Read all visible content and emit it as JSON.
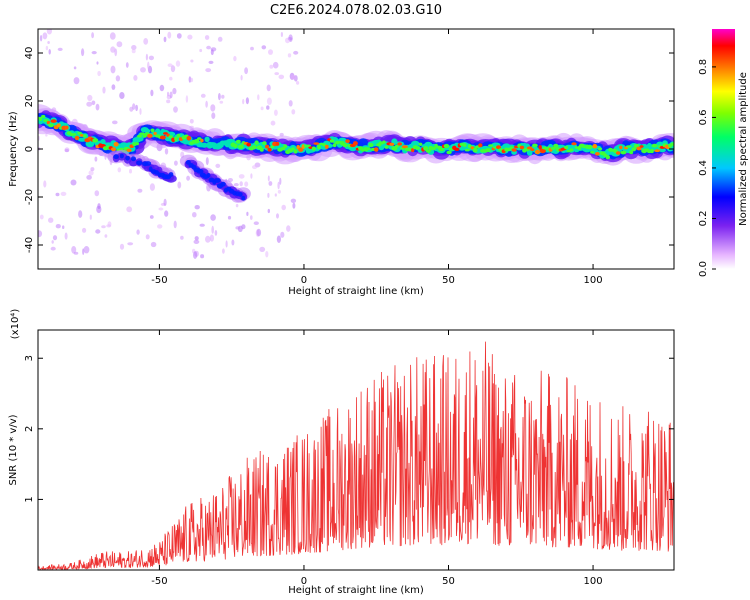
{
  "title": "C2E6.2024.078.02.03.G10",
  "chart_data": [
    {
      "type": "heatmap",
      "xlabel": "Height of straight line (km)",
      "ylabel": "Frequency (Hz)",
      "xlim": [
        -92,
        128
      ],
      "ylim": [
        -50,
        50
      ],
      "xticks": [
        -50,
        0,
        50,
        100
      ],
      "yticks": [
        -40,
        -20,
        0,
        20,
        40
      ],
      "colorbar": {
        "label": "Normalized spectral amplitude",
        "range": [
          0,
          0.95
        ],
        "ticks": [
          0.0,
          0.2,
          0.4,
          0.6,
          0.8
        ],
        "colormap": "rainbow-magenta"
      },
      "main_trace": [
        [
          -90,
          12,
          0.8
        ],
        [
          -85,
          10,
          0.75
        ],
        [
          -80,
          7,
          0.7
        ],
        [
          -75,
          4,
          0.55
        ],
        [
          -70,
          2,
          0.5
        ],
        [
          -65,
          1,
          0.45
        ],
        [
          -60,
          0,
          0.45
        ],
        [
          -55,
          7,
          0.5
        ],
        [
          -50,
          6,
          0.55
        ],
        [
          -45,
          5,
          0.5
        ],
        [
          -40,
          4,
          0.45
        ],
        [
          -35,
          3,
          0.45
        ],
        [
          -30,
          2,
          0.4
        ],
        [
          -25,
          2,
          0.45
        ],
        [
          -20,
          2,
          0.5
        ],
        [
          -15,
          1,
          0.5
        ],
        [
          -10,
          1,
          0.55
        ],
        [
          -5,
          0,
          0.6
        ],
        [
          0,
          0,
          0.6
        ],
        [
          5,
          1,
          0.55
        ],
        [
          10,
          3,
          0.5
        ],
        [
          15,
          2,
          0.55
        ],
        [
          20,
          1,
          0.6
        ],
        [
          25,
          1,
          0.65
        ],
        [
          30,
          2,
          0.6
        ],
        [
          35,
          1,
          0.55
        ],
        [
          40,
          1,
          0.6
        ],
        [
          45,
          0,
          0.6
        ],
        [
          50,
          0,
          0.55
        ],
        [
          55,
          1,
          0.6
        ],
        [
          60,
          0,
          0.6
        ],
        [
          65,
          1,
          0.55
        ],
        [
          70,
          0,
          0.6
        ],
        [
          75,
          0,
          0.6
        ],
        [
          80,
          0,
          0.65
        ],
        [
          85,
          1,
          0.65
        ],
        [
          90,
          0,
          0.7
        ],
        [
          95,
          1,
          0.7
        ],
        [
          100,
          0,
          0.65
        ],
        [
          105,
          -2,
          0.6
        ],
        [
          110,
          0,
          0.7
        ],
        [
          115,
          0,
          0.75
        ],
        [
          120,
          0,
          0.65
        ],
        [
          125,
          1,
          0.6
        ]
      ],
      "branch_traces": [
        [
          [
            -65,
            -3
          ],
          [
            -55,
            -6
          ],
          [
            -50,
            -10
          ],
          [
            -45,
            -12
          ]
        ],
        [
          [
            -40,
            -6
          ],
          [
            -35,
            -10
          ],
          [
            -30,
            -14
          ],
          [
            -25,
            -18
          ],
          [
            -20,
            -20
          ]
        ]
      ]
    },
    {
      "type": "line",
      "xlabel": "Height of straight line (km)",
      "ylabel": "SNR (10 * v/v)",
      "scale_label": "(x10⁴)",
      "xlim": [
        -92,
        128
      ],
      "ylim": [
        0,
        3.4
      ],
      "xticks": [
        -50,
        0,
        50,
        100
      ],
      "yticks": [
        1,
        2,
        3
      ],
      "color": "#ee3333",
      "envelope": [
        [
          -92,
          0.05
        ],
        [
          -80,
          0.1
        ],
        [
          -70,
          0.25
        ],
        [
          -60,
          0.25
        ],
        [
          -50,
          0.4
        ],
        [
          -40,
          0.9
        ],
        [
          -30,
          1.1
        ],
        [
          -20,
          1.5
        ],
        [
          -10,
          1.7
        ],
        [
          0,
          1.9
        ],
        [
          10,
          2.2
        ],
        [
          20,
          2.6
        ],
        [
          30,
          2.7
        ],
        [
          40,
          2.9
        ],
        [
          50,
          2.9
        ],
        [
          60,
          3.2
        ],
        [
          70,
          2.7
        ],
        [
          80,
          2.7
        ],
        [
          90,
          2.6
        ],
        [
          100,
          2.5
        ],
        [
          110,
          2.2
        ],
        [
          120,
          2.3
        ],
        [
          128,
          2.1
        ]
      ]
    }
  ]
}
